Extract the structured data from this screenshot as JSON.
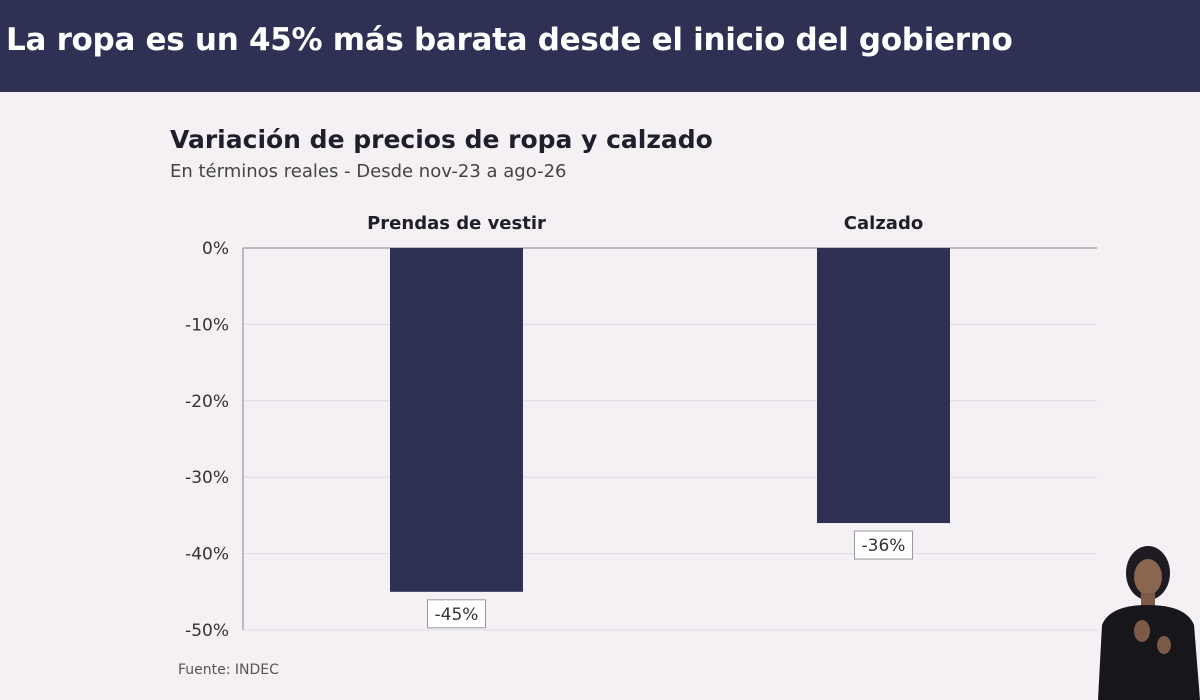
{
  "banner": {
    "title": "La ropa es un 45% más barata desde el inicio del gobierno"
  },
  "colors": {
    "banner_bg": "#2e3154",
    "bar": "#2e3154",
    "background": "#f4f0f4",
    "grid": "#dedbe2"
  },
  "chart_data": {
    "type": "bar",
    "title": "Variación de precios de ropa y calzado",
    "subtitle": "En términos reales - Desde nov-23 a ago-26",
    "categories": [
      "Prendas de vestir",
      "Calzado"
    ],
    "values": [
      -45,
      -36
    ],
    "value_labels": [
      "-45%",
      "-36%"
    ],
    "ylim": [
      -50,
      0
    ],
    "yticks": [
      0,
      -10,
      -20,
      -30,
      -40,
      -50
    ],
    "ytick_labels": [
      "0%",
      "-10%",
      "-20%",
      "-30%",
      "-40%",
      "-50%"
    ],
    "grid": true,
    "source": "Fuente: INDEC"
  },
  "overlay": {
    "icon": "sign-language-interpreter-icon"
  }
}
